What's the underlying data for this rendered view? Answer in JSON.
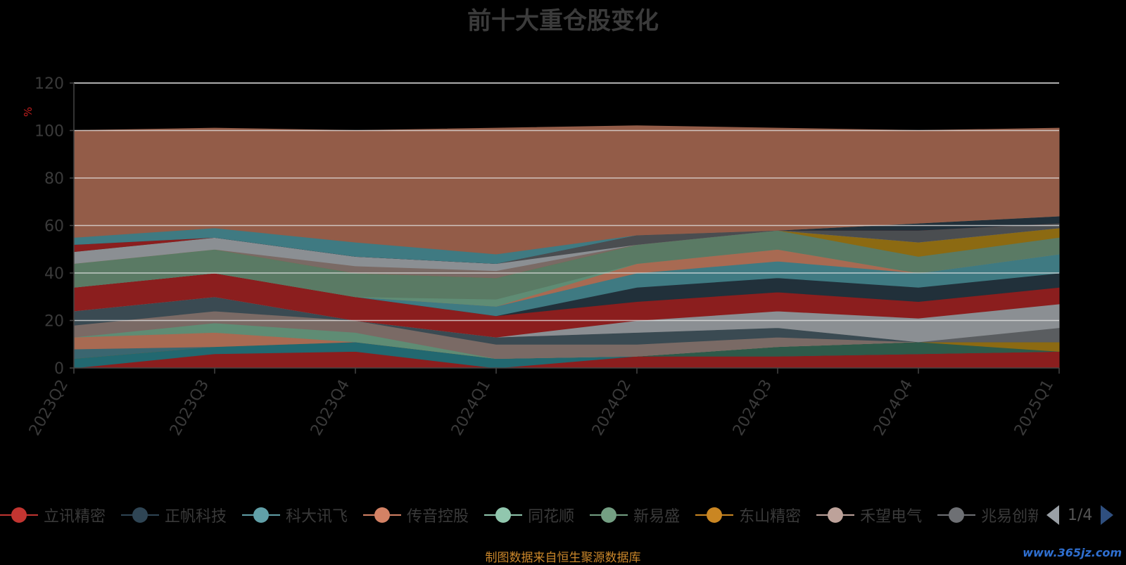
{
  "title": "前十大重仓股变化",
  "unit": "%",
  "source_note": "制图数据来自恒生聚源数据库",
  "watermark": "www.365jz.com",
  "pager": {
    "page": "1/4"
  },
  "legend": [
    {
      "name": "立讯精密",
      "color": "#c23531"
    },
    {
      "name": "正帆科技",
      "color": "#2f4554"
    },
    {
      "name": "科大讯飞",
      "color": "#61a0a8"
    },
    {
      "name": "传音控股",
      "color": "#d48265"
    },
    {
      "name": "同花顺",
      "color": "#91c7ae"
    },
    {
      "name": "新易盛",
      "color": "#749f83"
    },
    {
      "name": "东山精密",
      "color": "#ca8622"
    },
    {
      "name": "禾望电气",
      "color": "#bda29a"
    },
    {
      "name": "兆易创新",
      "color": "#6e7074"
    }
  ],
  "chart_data": {
    "type": "area",
    "stacked": true,
    "title": "前十大重仓股变化",
    "ylabel": "%",
    "ylim": [
      0,
      120
    ],
    "yticks": [
      0,
      20,
      40,
      60,
      80,
      100,
      120
    ],
    "categories": [
      "2023Q2",
      "2023Q3",
      "2023Q4",
      "2024Q1",
      "2024Q2",
      "2024Q3",
      "2024Q4",
      "2025Q1"
    ],
    "layers": [
      {
        "color": "#8b1e1e",
        "values": [
          0,
          6,
          7,
          0,
          5,
          5,
          6,
          7
        ]
      },
      {
        "color": "#226870",
        "values": [
          4,
          3,
          4,
          4,
          0,
          0,
          0,
          0
        ]
      },
      {
        "color": "#2e5a4a",
        "values": [
          0,
          0,
          0,
          0,
          0,
          4,
          5,
          0
        ]
      },
      {
        "color": "#8c6a12",
        "values": [
          0,
          0,
          0,
          0,
          0,
          0,
          0,
          4
        ]
      },
      {
        "color": "#3a6670",
        "values": [
          4,
          0,
          0,
          0,
          0,
          0,
          0,
          0
        ]
      },
      {
        "color": "#a86a52",
        "values": [
          5,
          6,
          0,
          0,
          0,
          0,
          0,
          0
        ]
      },
      {
        "color": "#5f8c74",
        "values": [
          0,
          4,
          4,
          0,
          0,
          0,
          0,
          0
        ]
      },
      {
        "color": "#7a6a65",
        "values": [
          5,
          5,
          5,
          6,
          5,
          4,
          0,
          0
        ]
      },
      {
        "color": "#3a4a52",
        "values": [
          6,
          6,
          0,
          3,
          5,
          4,
          0,
          0
        ]
      },
      {
        "color": "#5a5d60",
        "values": [
          0,
          0,
          0,
          0,
          0,
          0,
          0,
          6
        ]
      },
      {
        "color": "#8b8f93",
        "values": [
          0,
          0,
          0,
          0,
          5,
          7,
          10,
          10
        ]
      },
      {
        "color": "#8b1e1e",
        "values": [
          10,
          10,
          10,
          9,
          8,
          8,
          7,
          7
        ]
      },
      {
        "color": "#21303a",
        "values": [
          0,
          0,
          0,
          0,
          6,
          6,
          6,
          6
        ]
      },
      {
        "color": "#3f7a82",
        "values": [
          0,
          0,
          0,
          4,
          6,
          7,
          6,
          8
        ]
      },
      {
        "color": "#a86a52",
        "values": [
          0,
          0,
          0,
          0,
          4,
          5,
          0,
          0
        ]
      },
      {
        "color": "#5f8c74",
        "values": [
          0,
          0,
          0,
          3,
          0,
          0,
          0,
          0
        ]
      },
      {
        "color": "#5a7a64",
        "values": [
          10,
          10,
          10,
          9,
          8,
          8,
          7,
          7
        ]
      },
      {
        "color": "#8c6a12",
        "values": [
          0,
          0,
          0,
          0,
          0,
          0,
          6,
          4
        ]
      },
      {
        "color": "#7a6a65",
        "values": [
          0,
          0,
          3,
          3,
          0,
          0,
          0,
          0
        ]
      },
      {
        "color": "#8b8f93",
        "values": [
          5,
          5,
          4,
          3,
          0,
          0,
          0,
          0
        ]
      },
      {
        "color": "#4a4d50",
        "values": [
          0,
          0,
          0,
          0,
          4,
          0,
          5,
          2
        ]
      },
      {
        "color": "#8b1e1e",
        "values": [
          3,
          0,
          0,
          0,
          0,
          0,
          0,
          0
        ]
      },
      {
        "color": "#21303a",
        "values": [
          0,
          0,
          0,
          0,
          0,
          0,
          3,
          3
        ]
      },
      {
        "color": "#3f7a82",
        "values": [
          3,
          4,
          6,
          4,
          0,
          0,
          0,
          0
        ]
      },
      {
        "color": "#935c48",
        "values": [
          45,
          42,
          47,
          53,
          46,
          43,
          39,
          37
        ]
      }
    ]
  }
}
